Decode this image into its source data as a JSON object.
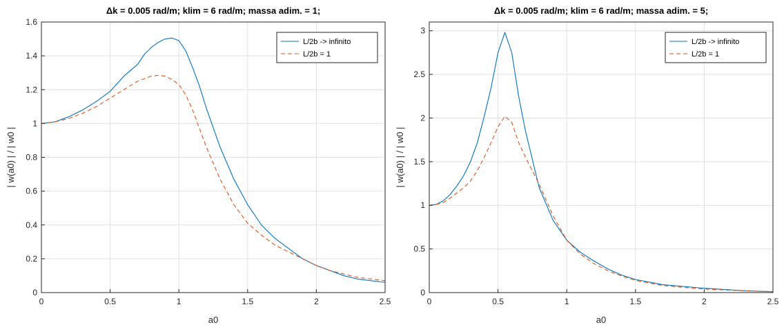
{
  "chart_data": [
    {
      "type": "line",
      "title": "Δk = 0.005 rad/m; klim = 6 rad/m; massa adim. = 1;",
      "xlabel": "a0",
      "ylabel": "| w(a0) | / | w0 |",
      "xlim": [
        0,
        2.5
      ],
      "ylim": [
        0,
        1.6
      ],
      "xticks": [
        "0",
        "0.5",
        "1",
        "1.5",
        "2",
        "2.5"
      ],
      "yticks": [
        "0",
        "0.2",
        "0.4",
        "0.6",
        "0.8",
        "1",
        "1.2",
        "1.4",
        "1.6"
      ],
      "grid": true,
      "legend_position": "top-right",
      "series": [
        {
          "name": "L/2b -> infinito",
          "color": "#0072BD",
          "style": "solid",
          "x": [
            0,
            0.1,
            0.2,
            0.3,
            0.4,
            0.5,
            0.6,
            0.7,
            0.75,
            0.8,
            0.85,
            0.9,
            0.95,
            1.0,
            1.05,
            1.1,
            1.15,
            1.2,
            1.3,
            1.4,
            1.5,
            1.6,
            1.7,
            1.8,
            1.9,
            2.0,
            2.1,
            2.2,
            2.3,
            2.4,
            2.5
          ],
          "y": [
            1.0,
            1.01,
            1.04,
            1.08,
            1.13,
            1.19,
            1.28,
            1.35,
            1.41,
            1.45,
            1.48,
            1.5,
            1.505,
            1.49,
            1.43,
            1.33,
            1.22,
            1.09,
            0.86,
            0.67,
            0.52,
            0.4,
            0.32,
            0.26,
            0.2,
            0.16,
            0.13,
            0.1,
            0.08,
            0.07,
            0.06
          ]
        },
        {
          "name": "L/2b = 1",
          "color": "#D95319",
          "style": "dashed",
          "x": [
            0,
            0.1,
            0.2,
            0.3,
            0.4,
            0.5,
            0.6,
            0.7,
            0.8,
            0.85,
            0.9,
            0.95,
            1.0,
            1.05,
            1.1,
            1.2,
            1.3,
            1.4,
            1.5,
            1.6,
            1.7,
            1.8,
            1.9,
            2.0,
            2.1,
            2.2,
            2.3,
            2.4,
            2.5
          ],
          "y": [
            1.0,
            1.01,
            1.03,
            1.06,
            1.1,
            1.15,
            1.2,
            1.25,
            1.28,
            1.285,
            1.28,
            1.26,
            1.23,
            1.17,
            1.08,
            0.86,
            0.67,
            0.52,
            0.41,
            0.34,
            0.28,
            0.24,
            0.2,
            0.16,
            0.13,
            0.11,
            0.09,
            0.08,
            0.07
          ]
        }
      ]
    },
    {
      "type": "line",
      "title": "Δk = 0.005 rad/m; klim = 6 rad/m; massa adim. = 5;",
      "xlabel": "a0",
      "ylabel": "| w(a0) | / | w0 |",
      "xlim": [
        0,
        2.5
      ],
      "ylim": [
        0,
        3.1
      ],
      "xticks": [
        "0",
        "0.5",
        "1",
        "1.5",
        "2",
        "2.5"
      ],
      "yticks": [
        "0",
        "0.5",
        "1",
        "1.5",
        "2",
        "2.5",
        "3"
      ],
      "grid": true,
      "legend_position": "top-right",
      "series": [
        {
          "name": "L/2b -> infinito",
          "color": "#0072BD",
          "style": "solid",
          "x": [
            0,
            0.05,
            0.1,
            0.15,
            0.2,
            0.25,
            0.3,
            0.35,
            0.4,
            0.45,
            0.5,
            0.55,
            0.6,
            0.65,
            0.7,
            0.8,
            0.9,
            1.0,
            1.1,
            1.2,
            1.3,
            1.4,
            1.5,
            1.7,
            2.0,
            2.3,
            2.5
          ],
          "y": [
            1.0,
            1.01,
            1.05,
            1.12,
            1.22,
            1.34,
            1.5,
            1.72,
            2.02,
            2.35,
            2.75,
            2.98,
            2.75,
            2.25,
            1.85,
            1.2,
            0.83,
            0.6,
            0.46,
            0.36,
            0.27,
            0.2,
            0.15,
            0.09,
            0.05,
            0.02,
            0.01
          ]
        },
        {
          "name": "L/2b = 1",
          "color": "#D95319",
          "style": "dashed",
          "x": [
            0,
            0.05,
            0.1,
            0.15,
            0.2,
            0.25,
            0.3,
            0.35,
            0.4,
            0.45,
            0.5,
            0.55,
            0.6,
            0.65,
            0.7,
            0.8,
            0.9,
            1.0,
            1.1,
            1.2,
            1.3,
            1.4,
            1.5,
            1.7,
            2.0,
            2.3,
            2.5
          ],
          "y": [
            1.0,
            1.01,
            1.03,
            1.08,
            1.14,
            1.2,
            1.28,
            1.4,
            1.55,
            1.72,
            1.9,
            2.02,
            1.95,
            1.72,
            1.55,
            1.24,
            0.88,
            0.6,
            0.44,
            0.33,
            0.25,
            0.19,
            0.14,
            0.08,
            0.04,
            0.02,
            0.01
          ]
        }
      ]
    }
  ]
}
